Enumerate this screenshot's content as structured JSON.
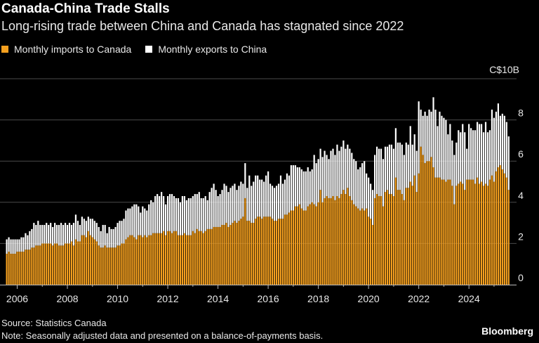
{
  "title": "Canada-China Trade Stalls",
  "subtitle": "Long-rising trade between China and Canada has stagnated since 2022",
  "source": "Source: Statistics Canada",
  "note": "Note: Seasonally adjusted data and presented on a balance-of-payments basis.",
  "brand": "Bloomberg",
  "chart_data": {
    "type": "bar",
    "stacked": true,
    "unit_label": "C$10B",
    "ylim": [
      0,
      10
    ],
    "yticks": [
      "0",
      "2",
      "4",
      "6",
      "8"
    ],
    "xticks": [
      "2006",
      "2008",
      "2010",
      "2012",
      "2014",
      "2016",
      "2018",
      "2020",
      "2022",
      "2024"
    ],
    "grid": true,
    "legend_position": "top-left",
    "colors": {
      "imports": "#f5a01f",
      "exports": "#ffffff",
      "background": "#000000",
      "grid": "#4a4a4a"
    },
    "series": [
      {
        "key": "imports",
        "name": "Monthly imports to Canada"
      },
      {
        "key": "exports",
        "name": "Monthly exports to China"
      }
    ],
    "years": [
      {
        "year": 2005,
        "months": [
          8,
          9,
          10,
          11,
          12
        ],
        "imports": [
          1.5,
          1.6,
          1.5,
          1.5,
          1.5
        ],
        "exports": [
          0.7,
          0.7,
          0.7,
          0.7,
          0.7
        ]
      },
      {
        "year": 2006,
        "months": [
          1,
          2,
          3,
          4,
          5,
          6,
          7,
          8,
          9,
          10,
          11,
          12
        ],
        "imports": [
          1.6,
          1.6,
          1.6,
          1.6,
          1.7,
          1.7,
          1.7,
          1.8,
          1.8,
          1.9,
          1.9,
          1.9
        ],
        "exports": [
          0.6,
          0.6,
          0.7,
          0.7,
          0.8,
          0.7,
          0.9,
          0.9,
          1.2,
          1.0,
          1.2,
          1.0
        ]
      },
      {
        "year": 2007,
        "months": [
          1,
          2,
          3,
          4,
          5,
          6,
          7,
          8,
          9,
          10,
          11,
          12
        ],
        "imports": [
          2.0,
          2.0,
          2.0,
          2.0,
          2.0,
          1.9,
          2.0,
          2.0,
          1.9,
          1.9,
          1.9,
          2.0
        ],
        "exports": [
          0.9,
          0.9,
          1.0,
          0.9,
          1.0,
          0.9,
          1.0,
          0.9,
          1.0,
          1.1,
          1.0,
          1.0
        ]
      },
      {
        "year": 2008,
        "months": [
          1,
          2,
          3,
          4,
          5,
          6,
          7,
          8,
          9,
          10,
          11,
          12
        ],
        "imports": [
          2.0,
          2.0,
          2.1,
          1.9,
          2.2,
          2.1,
          2.1,
          2.4,
          2.4,
          2.3,
          2.6,
          2.4
        ],
        "exports": [
          0.9,
          1.0,
          0.8,
          1.1,
          1.2,
          1.0,
          0.8,
          0.9,
          0.8,
          0.8,
          0.7,
          0.8
        ]
      },
      {
        "year": 2009,
        "months": [
          1,
          2,
          3,
          4,
          5,
          6,
          7,
          8,
          9,
          10,
          11,
          12
        ],
        "imports": [
          2.3,
          2.2,
          2.1,
          1.9,
          1.8,
          1.8,
          1.9,
          1.8,
          1.8,
          1.8,
          1.8,
          1.8
        ],
        "exports": [
          0.9,
          0.9,
          0.9,
          0.9,
          0.8,
          1.1,
          1.0,
          0.7,
          1.0,
          0.9,
          0.9,
          1.0
        ]
      },
      {
        "year": 2010,
        "months": [
          1,
          2,
          3,
          4,
          5,
          6,
          7,
          8,
          9,
          10,
          11,
          12
        ],
        "imports": [
          1.9,
          1.9,
          2.0,
          2.0,
          2.2,
          2.3,
          2.4,
          2.4,
          2.3,
          2.2,
          2.4,
          2.4
        ],
        "exports": [
          1.1,
          1.2,
          1.1,
          1.2,
          1.4,
          1.4,
          1.3,
          1.4,
          1.6,
          1.7,
          1.4,
          1.1
        ]
      },
      {
        "year": 2011,
        "months": [
          1,
          2,
          3,
          4,
          5,
          6,
          7,
          8,
          9,
          10,
          11,
          12
        ],
        "imports": [
          2.3,
          2.4,
          2.3,
          2.4,
          2.4,
          2.5,
          2.5,
          2.5,
          2.5,
          2.5,
          2.6,
          2.4
        ],
        "exports": [
          1.5,
          1.3,
          1.3,
          1.5,
          1.7,
          1.5,
          1.8,
          1.9,
          1.8,
          2.0,
          1.7,
          1.5
        ]
      },
      {
        "year": 2012,
        "months": [
          1,
          2,
          3,
          4,
          5,
          6,
          7,
          8,
          9,
          10,
          11,
          12
        ],
        "imports": [
          2.6,
          2.6,
          2.5,
          2.6,
          2.6,
          2.4,
          2.4,
          2.4,
          2.5,
          2.4,
          2.4,
          2.4
        ],
        "exports": [
          1.7,
          1.8,
          1.9,
          1.7,
          1.6,
          1.8,
          1.6,
          1.9,
          1.8,
          1.7,
          1.8,
          1.8
        ]
      },
      {
        "year": 2013,
        "months": [
          1,
          2,
          3,
          4,
          5,
          6,
          7,
          8,
          9,
          10,
          11,
          12
        ],
        "imports": [
          2.6,
          2.5,
          2.7,
          2.6,
          2.6,
          2.5,
          2.6,
          2.7,
          2.7,
          2.7,
          2.8,
          2.8
        ],
        "exports": [
          1.7,
          1.9,
          1.7,
          1.9,
          1.6,
          1.7,
          1.7,
          1.4,
          1.8,
          2.0,
          2.1,
          1.8
        ]
      },
      {
        "year": 2014,
        "months": [
          1,
          2,
          3,
          4,
          5,
          6,
          7,
          8,
          9,
          10,
          11,
          12
        ],
        "imports": [
          2.8,
          2.8,
          2.9,
          2.9,
          3.0,
          2.8,
          2.9,
          3.0,
          3.1,
          3.0,
          3.1,
          3.2
        ],
        "exports": [
          1.5,
          1.6,
          1.7,
          2.0,
          1.8,
          1.7,
          1.8,
          1.8,
          1.8,
          1.6,
          1.7,
          1.8
        ]
      },
      {
        "year": 2015,
        "months": [
          1,
          2,
          3,
          4,
          5,
          6,
          7,
          8,
          9,
          10,
          11,
          12
        ],
        "imports": [
          3.3,
          4.2,
          3.1,
          3.1,
          3.0,
          3.0,
          3.2,
          3.3,
          3.3,
          3.2,
          3.3,
          3.3
        ],
        "exports": [
          1.6,
          1.7,
          1.6,
          2.2,
          1.8,
          2.0,
          2.1,
          2.0,
          1.8,
          1.9,
          1.7,
          2.0
        ]
      },
      {
        "year": 2016,
        "months": [
          1,
          2,
          3,
          4,
          5,
          6,
          7,
          8,
          9,
          10,
          11,
          12
        ],
        "imports": [
          3.3,
          3.3,
          3.2,
          3.1,
          3.1,
          3.2,
          3.2,
          3.2,
          3.4,
          3.4,
          3.5,
          3.6
        ],
        "exports": [
          2.2,
          1.6,
          1.6,
          1.6,
          1.7,
          1.7,
          2.1,
          1.7,
          1.7,
          2.0,
          1.8,
          2.2
        ]
      },
      {
        "year": 2017,
        "months": [
          1,
          2,
          3,
          4,
          5,
          6,
          7,
          8,
          9,
          10,
          11,
          12
        ],
        "imports": [
          3.6,
          3.8,
          3.8,
          3.9,
          3.7,
          3.6,
          3.6,
          3.8,
          3.9,
          4.0,
          3.9,
          3.8
        ],
        "exports": [
          2.2,
          2.0,
          1.9,
          1.8,
          1.9,
          1.9,
          1.9,
          1.9,
          1.6,
          1.6,
          2.4,
          2.1
        ]
      },
      {
        "year": 2018,
        "months": [
          1,
          2,
          3,
          4,
          5,
          6,
          7,
          8,
          9,
          10,
          11,
          12
        ],
        "imports": [
          4.0,
          4.6,
          4.0,
          4.2,
          4.3,
          4.2,
          4.2,
          4.3,
          4.1,
          4.3,
          4.2,
          4.4
        ],
        "exports": [
          2.1,
          2.0,
          2.2,
          2.3,
          2.0,
          1.9,
          2.3,
          2.3,
          2.2,
          2.5,
          2.3,
          2.3
        ]
      },
      {
        "year": 2019,
        "months": [
          1,
          2,
          3,
          4,
          5,
          6,
          7,
          8,
          9,
          10,
          11,
          12
        ],
        "imports": [
          4.6,
          4.4,
          4.7,
          4.3,
          4.1,
          3.9,
          3.8,
          3.7,
          3.6,
          3.7,
          3.6,
          3.7
        ],
        "exports": [
          2.4,
          2.2,
          2.1,
          2.3,
          2.3,
          2.2,
          2.2,
          1.9,
          2.1,
          2.2,
          2.4,
          1.7
        ]
      },
      {
        "year": 2020,
        "months": [
          1,
          2,
          3,
          4,
          5,
          6,
          7,
          8,
          9,
          10,
          11,
          12
        ],
        "imports": [
          3.3,
          3.2,
          2.9,
          4.2,
          4.4,
          4.3,
          4.3,
          3.8,
          4.5,
          4.6,
          4.4,
          4.4
        ],
        "exports": [
          1.9,
          1.7,
          1.7,
          2.1,
          2.3,
          2.3,
          2.3,
          2.3,
          2.2,
          2.1,
          2.4,
          2.4
        ]
      },
      {
        "year": 2021,
        "months": [
          1,
          2,
          3,
          4,
          5,
          6,
          7,
          8,
          9,
          10,
          11,
          12
        ],
        "imports": [
          4.3,
          5.2,
          4.6,
          4.6,
          4.4,
          4.1,
          4.7,
          4.7,
          5.0,
          4.8,
          5.3,
          4.5
        ],
        "exports": [
          2.3,
          2.4,
          2.3,
          2.3,
          2.4,
          2.2,
          2.2,
          2.1,
          2.7,
          2.0,
          2.0,
          2.0
        ]
      },
      {
        "year": 2022,
        "months": [
          1,
          2,
          3,
          4,
          5,
          6,
          7,
          8,
          9,
          10,
          11,
          12
        ],
        "imports": [
          5.4,
          6.7,
          6.3,
          5.9,
          6.0,
          6.0,
          6.2,
          5.7,
          5.2,
          5.2,
          5.2,
          5.1
        ],
        "exports": [
          3.5,
          1.8,
          1.9,
          2.5,
          2.2,
          2.5,
          2.2,
          3.4,
          3.3,
          2.5,
          3.2,
          3.1
        ]
      },
      {
        "year": 2023,
        "months": [
          1,
          2,
          3,
          4,
          5,
          6,
          7,
          8,
          9,
          10,
          11,
          12
        ],
        "imports": [
          5.1,
          5.0,
          5.1,
          5.1,
          4.8,
          3.9,
          4.8,
          4.9,
          5.0,
          4.9,
          4.6,
          5.1
        ],
        "exports": [
          3.0,
          3.0,
          2.2,
          2.7,
          2.2,
          2.4,
          2.1,
          2.6,
          2.4,
          2.9,
          2.8,
          1.5
        ]
      },
      {
        "year": 2024,
        "months": [
          1,
          2,
          3,
          4,
          5,
          6,
          7,
          8,
          9,
          10,
          11,
          12
        ],
        "imports": [
          5.1,
          5.1,
          5.1,
          4.9,
          5.2,
          4.9,
          5.0,
          4.8,
          4.9,
          4.8,
          5.1,
          5.3
        ],
        "exports": [
          2.7,
          2.5,
          2.4,
          2.6,
          2.7,
          2.9,
          2.8,
          2.6,
          3.0,
          2.6,
          2.4,
          3.2
        ]
      },
      {
        "year": 2025,
        "months": [
          1,
          2,
          3,
          4,
          5,
          6,
          7,
          8
        ],
        "imports": [
          5.0,
          5.5,
          5.7,
          5.8,
          5.6,
          5.4,
          5.2,
          4.6
        ],
        "exports": [
          3.1,
          2.9,
          3.1,
          2.4,
          2.7,
          2.8,
          2.7,
          2.6
        ]
      }
    ]
  }
}
